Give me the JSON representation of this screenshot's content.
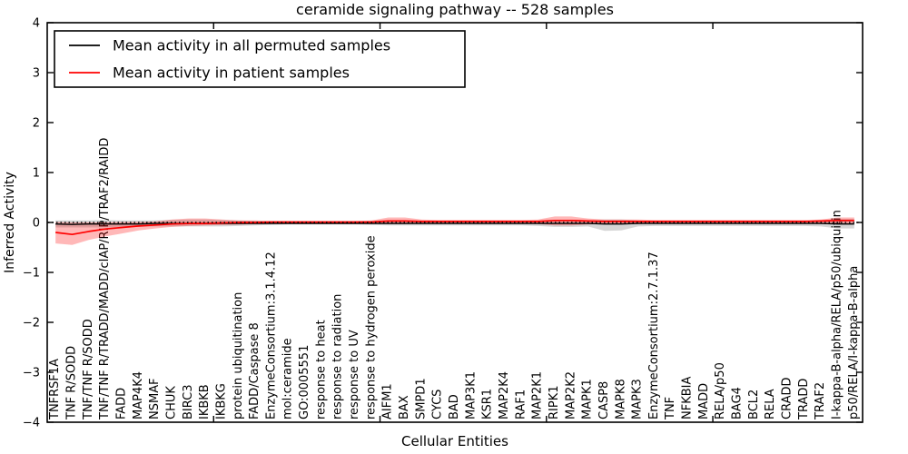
{
  "chart_data": {
    "type": "line",
    "title": "ceramide signaling pathway -- 528 samples",
    "xlabel": "Cellular Entities",
    "ylabel": "Inferred Activity",
    "ylim": [
      -4,
      4
    ],
    "yticks": [
      4,
      3,
      2,
      1,
      0,
      -1,
      -2,
      -3,
      -4
    ],
    "ytick_labels": [
      "4",
      "3",
      "2",
      "1",
      "0",
      "−1",
      "−2",
      "−3",
      "−4"
    ],
    "xtick_positions": [
      10,
      20,
      30,
      40
    ],
    "grid": false,
    "legend_position": "upper left",
    "zero_line": true,
    "colors": {
      "background": "#ffffff",
      "axes": "#000000",
      "permuted_line": "#000000",
      "patient_line": "#ff0000",
      "permuted_band": "rgba(0,0,0,0.16)",
      "patient_band": "rgba(255,0,0,0.28)"
    },
    "categories": [
      "TNFRSF1A",
      "TNF R/SODD",
      "TNF/TNF R/SODD",
      "TNF/TNF R/TRADD/MADD/cIAP/RIP/TRAF2/RAIDD",
      "FADD",
      "MAP4K4",
      "NSMAF",
      "CHUK",
      "BIRC3",
      "IKBKB",
      "IKBKG",
      "protein ubiquitination",
      "FADD/Caspase 8",
      "EnzymeConsortium:3.1.4.12",
      "mol:ceramide",
      "GO:0005551",
      "response to heat",
      "response to radiation",
      "response to UV",
      "response to hydrogen peroxide",
      "AIFM1",
      "BAX",
      "SMPD1",
      "CYCS",
      "BAD",
      "MAP3K1",
      "KSR1",
      "MAP2K4",
      "RAF1",
      "MAP2K1",
      "RIPK1",
      "MAP2K2",
      "MAPK1",
      "CASP8",
      "MAPK8",
      "MAPK3",
      "EnzymeConsortium:2.7.1.37",
      "TNF",
      "NFKBIA",
      "MADD",
      "RELA/p50",
      "BAG4",
      "BCL2",
      "RELA",
      "CRADD",
      "TRADD",
      "TRAF2",
      "I-kappa-B-alpha/RELA/p50/ubiquitin",
      "p50/RELA/I-kappa-B-alpha"
    ],
    "series": [
      {
        "name": "Mean activity in all permuted samples",
        "color": "#000000",
        "band_color": "rgba(0,0,0,0.16)",
        "values": [
          -0.03,
          -0.04,
          -0.03,
          -0.03,
          -0.03,
          -0.03,
          -0.02,
          -0.02,
          -0.02,
          -0.02,
          -0.02,
          -0.02,
          -0.02,
          -0.02,
          -0.02,
          -0.02,
          -0.02,
          -0.02,
          -0.02,
          -0.02,
          -0.02,
          -0.02,
          -0.02,
          -0.02,
          -0.02,
          -0.02,
          -0.02,
          -0.02,
          -0.02,
          -0.02,
          -0.02,
          -0.02,
          -0.02,
          -0.03,
          -0.03,
          -0.02,
          -0.02,
          -0.02,
          -0.02,
          -0.02,
          -0.02,
          -0.02,
          -0.02,
          -0.02,
          -0.02,
          -0.02,
          -0.02,
          -0.03,
          -0.03
        ],
        "band_upper": [
          0.04,
          0.04,
          0.04,
          0.05,
          0.04,
          0.04,
          0.04,
          0.05,
          0.06,
          0.06,
          0.05,
          0.04,
          0.03,
          0.02,
          0.02,
          0.02,
          0.02,
          0.02,
          0.02,
          0.03,
          0.04,
          0.04,
          0.03,
          0.03,
          0.03,
          0.03,
          0.03,
          0.03,
          0.03,
          0.03,
          0.04,
          0.04,
          0.04,
          0.06,
          0.06,
          0.04,
          0.03,
          0.03,
          0.03,
          0.03,
          0.03,
          0.03,
          0.03,
          0.03,
          0.03,
          0.03,
          0.04,
          0.07,
          0.07
        ],
        "band_lower": [
          -0.1,
          -0.1,
          -0.1,
          -0.1,
          -0.09,
          -0.09,
          -0.08,
          -0.08,
          -0.08,
          -0.08,
          -0.08,
          -0.07,
          -0.06,
          -0.05,
          -0.04,
          -0.04,
          -0.04,
          -0.04,
          -0.04,
          -0.05,
          -0.06,
          -0.06,
          -0.06,
          -0.06,
          -0.06,
          -0.06,
          -0.06,
          -0.06,
          -0.06,
          -0.07,
          -0.09,
          -0.09,
          -0.08,
          -0.17,
          -0.16,
          -0.08,
          -0.07,
          -0.07,
          -0.07,
          -0.07,
          -0.07,
          -0.07,
          -0.07,
          -0.07,
          -0.07,
          -0.07,
          -0.08,
          -0.12,
          -0.12
        ]
      },
      {
        "name": "Mean activity in patient samples",
        "color": "#ff0000",
        "band_color": "rgba(255,0,0,0.28)",
        "values": [
          -0.2,
          -0.24,
          -0.18,
          -0.13,
          -0.1,
          -0.07,
          -0.05,
          -0.03,
          -0.02,
          -0.02,
          -0.01,
          0.0,
          0.0,
          0.01,
          0.01,
          0.01,
          0.01,
          0.01,
          0.01,
          0.01,
          0.03,
          0.03,
          0.02,
          0.02,
          0.02,
          0.02,
          0.02,
          0.02,
          0.02,
          0.02,
          0.04,
          0.04,
          0.03,
          0.02,
          0.02,
          0.02,
          0.02,
          0.02,
          0.02,
          0.02,
          0.02,
          0.02,
          0.02,
          0.02,
          0.02,
          0.02,
          0.03,
          0.04,
          0.04
        ],
        "band_upper": [
          0.01,
          0.0,
          0.0,
          0.0,
          0.01,
          0.01,
          0.02,
          0.06,
          0.08,
          0.08,
          0.06,
          0.04,
          0.04,
          0.03,
          0.03,
          0.03,
          0.03,
          0.03,
          0.03,
          0.04,
          0.1,
          0.1,
          0.06,
          0.05,
          0.05,
          0.05,
          0.05,
          0.05,
          0.05,
          0.06,
          0.12,
          0.12,
          0.08,
          0.06,
          0.06,
          0.06,
          0.05,
          0.05,
          0.05,
          0.05,
          0.05,
          0.05,
          0.05,
          0.05,
          0.05,
          0.05,
          0.06,
          0.1,
          0.1
        ],
        "band_lower": [
          -0.42,
          -0.45,
          -0.35,
          -0.28,
          -0.22,
          -0.16,
          -0.12,
          -0.09,
          -0.07,
          -0.06,
          -0.05,
          -0.04,
          -0.03,
          -0.02,
          -0.02,
          -0.02,
          -0.02,
          -0.02,
          -0.02,
          -0.02,
          -0.03,
          -0.03,
          -0.02,
          -0.02,
          -0.02,
          -0.02,
          -0.02,
          -0.02,
          -0.02,
          -0.03,
          -0.06,
          -0.06,
          -0.04,
          -0.03,
          -0.03,
          -0.03,
          -0.02,
          -0.02,
          -0.02,
          -0.02,
          -0.02,
          -0.02,
          -0.02,
          -0.02,
          -0.02,
          -0.02,
          -0.03,
          -0.04,
          -0.04
        ]
      }
    ]
  }
}
